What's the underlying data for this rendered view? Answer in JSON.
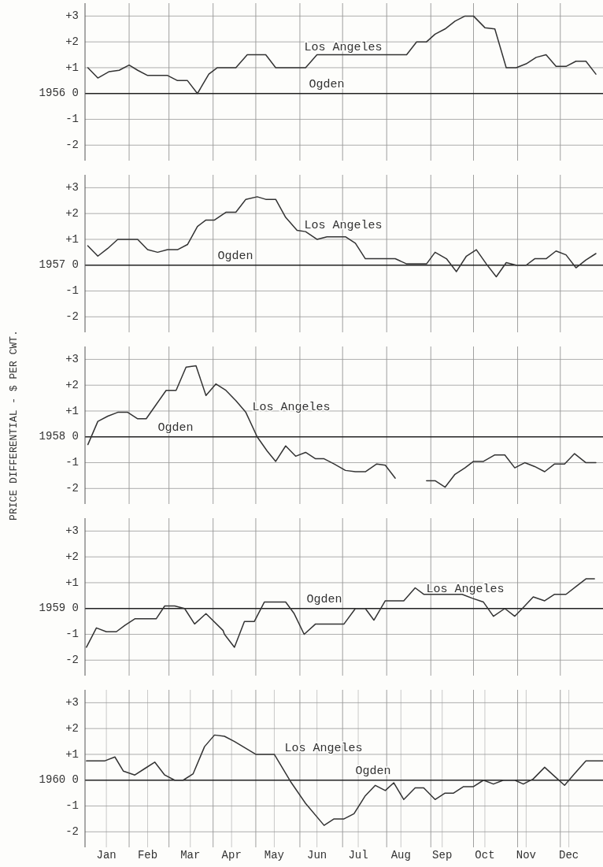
{
  "chart_data": [
    {
      "type": "line",
      "grid": true,
      "tick_labels": "y",
      "xlim": [
        "--01-01",
        "--12-31"
      ],
      "ylim": [
        -2.6,
        3.5
      ],
      "xticks": [
        {
          "value": "--02-01",
          "label": null
        },
        {
          "value": "--03-01",
          "label": null
        },
        {
          "value": "--04-01",
          "label": null
        },
        {
          "value": "--05-01",
          "label": null
        },
        {
          "value": "--06-01",
          "label": null
        },
        {
          "value": "--07-01",
          "label": null
        },
        {
          "value": "--08-01",
          "label": null
        },
        {
          "value": "--09-01",
          "label": null
        },
        {
          "value": "--10-01",
          "label": null
        },
        {
          "value": "--11-01",
          "label": null
        },
        {
          "value": "--12-01",
          "label": null
        }
      ],
      "yticks": [
        {
          "value": -2,
          "label": "-2"
        },
        {
          "value": -1,
          "label": "-1"
        },
        {
          "value": 0,
          "label": "1956 0"
        },
        {
          "value": 1,
          "label": "+1"
        },
        {
          "value": 2,
          "label": "+2"
        },
        {
          "value": 3,
          "label": "+3"
        }
      ],
      "annotations": [
        "Los Angeles",
        "Ogden"
      ],
      "series": [
        {
          "color": "#333333",
          "x": [
            "--01-03",
            "--01-10",
            "--01-18",
            "--01-25",
            "--02-01",
            "--02-07",
            "--02-14",
            "--02-21",
            "--02-28",
            "--03-07",
            "--03-14",
            "--03-21",
            "--03-29",
            "--04-04",
            "--04-17",
            "--04-25",
            "--05-08",
            "--05-15",
            "--06-05",
            "--06-13",
            "--08-15",
            "--08-22",
            "--08-29",
            "--09-04",
            "--09-11",
            "--09-18",
            "--09-25",
            "--10-01",
            "--10-09",
            "--10-16",
            "--10-24",
            "--10-31",
            "--11-07",
            "--11-14",
            "--11-21",
            "--11-28",
            "--12-05",
            "--12-12",
            "--12-19",
            "--12-26"
          ],
          "values": [
            1.0,
            0.6,
            0.85,
            0.9,
            1.1,
            0.9,
            0.7,
            0.7,
            0.7,
            0.5,
            0.5,
            0.0,
            0.75,
            1.0,
            1.0,
            1.5,
            1.5,
            1.0,
            1.0,
            1.5,
            1.5,
            2.0,
            2.0,
            2.3,
            2.5,
            2.8,
            3.0,
            3.0,
            2.55,
            2.5,
            1.0,
            1.0,
            1.15,
            1.4,
            1.5,
            1.05,
            1.05,
            1.25,
            1.25,
            0.75
          ]
        }
      ]
    },
    {
      "type": "line",
      "grid": true,
      "tick_labels": "y",
      "xlim": [
        "--01-01",
        "--12-31"
      ],
      "ylim": [
        -2.6,
        3.5
      ],
      "xticks": [
        {
          "value": "--02-01",
          "label": null
        },
        {
          "value": "--03-01",
          "label": null
        },
        {
          "value": "--04-01",
          "label": null
        },
        {
          "value": "--05-01",
          "label": null
        },
        {
          "value": "--06-01",
          "label": null
        },
        {
          "value": "--07-01",
          "label": null
        },
        {
          "value": "--08-01",
          "label": null
        },
        {
          "value": "--09-01",
          "label": null
        },
        {
          "value": "--10-01",
          "label": null
        },
        {
          "value": "--11-01",
          "label": null
        },
        {
          "value": "--12-01",
          "label": null
        }
      ],
      "yticks": [
        {
          "value": -2,
          "label": "-2"
        },
        {
          "value": -1,
          "label": "-1"
        },
        {
          "value": 0,
          "label": "1957 0"
        },
        {
          "value": 1,
          "label": "+1"
        },
        {
          "value": 2,
          "label": "+2"
        },
        {
          "value": 3,
          "label": "+3"
        }
      ],
      "annotations": [
        "Los Angeles",
        "Ogden"
      ],
      "series": [
        {
          "color": "#333333",
          "x": [
            "--01-03",
            "--01-10",
            "--01-17",
            "--01-24",
            "--02-07",
            "--02-14",
            "--02-21",
            "--02-28",
            "--03-07",
            "--03-14",
            "--03-21",
            "--03-27",
            "--04-02",
            "--04-10",
            "--04-17",
            "--04-24",
            "--05-02",
            "--05-08",
            "--05-15",
            "--05-22",
            "--05-30",
            "--06-05",
            "--06-13",
            "--06-20",
            "--07-03",
            "--07-10",
            "--07-17",
            "--08-07",
            "--08-15",
            "--08-29",
            "--09-04",
            "--09-12",
            "--09-19",
            "--09-26",
            "--10-03",
            "--10-10",
            "--10-17",
            "--10-24",
            "--10-31",
            "--11-07",
            "--11-13",
            "--11-21",
            "--11-28",
            "--12-05",
            "--12-12",
            "--12-19",
            "--12-26"
          ],
          "values": [
            0.75,
            0.35,
            0.65,
            1.0,
            1.0,
            0.6,
            0.5,
            0.6,
            0.6,
            0.8,
            1.5,
            1.75,
            1.75,
            2.05,
            2.05,
            2.55,
            2.65,
            2.55,
            2.55,
            1.85,
            1.35,
            1.3,
            1.0,
            1.1,
            1.1,
            0.85,
            0.25,
            0.25,
            0.05,
            0.05,
            0.5,
            0.25,
            -0.25,
            0.35,
            0.6,
            0.05,
            -0.45,
            0.1,
            0.0,
            0.0,
            0.25,
            0.25,
            0.55,
            0.4,
            -0.1,
            0.2,
            0.45
          ]
        }
      ]
    },
    {
      "type": "line",
      "grid": true,
      "tick_labels": "y",
      "xlim": [
        "--01-01",
        "--12-31"
      ],
      "ylim": [
        -2.6,
        3.5
      ],
      "ylabel": "PRICE DIFFERENTIAL - $ PER CWT.",
      "xticks": [
        {
          "value": "--02-01",
          "label": null
        },
        {
          "value": "--03-01",
          "label": null
        },
        {
          "value": "--04-01",
          "label": null
        },
        {
          "value": "--05-01",
          "label": null
        },
        {
          "value": "--06-01",
          "label": null
        },
        {
          "value": "--07-01",
          "label": null
        },
        {
          "value": "--08-01",
          "label": null
        },
        {
          "value": "--09-01",
          "label": null
        },
        {
          "value": "--10-01",
          "label": null
        },
        {
          "value": "--11-01",
          "label": null
        },
        {
          "value": "--12-01",
          "label": null
        }
      ],
      "yticks": [
        {
          "value": -2,
          "label": "-2"
        },
        {
          "value": -1,
          "label": "-1"
        },
        {
          "value": 0,
          "label": "1958 0"
        },
        {
          "value": 1,
          "label": "+1"
        },
        {
          "value": 2,
          "label": "+2"
        },
        {
          "value": 3,
          "label": "+3"
        }
      ],
      "annotations": [
        "Los Angeles",
        "Ogden"
      ],
      "series": [
        {
          "color": "#333333",
          "x": [
            "--01-03",
            "--01-10",
            "--01-17",
            "--01-24",
            "--01-31",
            "--02-07",
            "--02-13",
            "--02-20",
            "--02-27",
            "--03-06",
            "--03-13",
            "--03-20",
            "--03-27",
            "--04-03",
            "--04-10",
            "--04-17",
            "--04-24",
            "--05-02",
            "--05-09",
            "--05-15",
            "--05-22",
            "--05-29",
            "--06-05",
            "--06-12",
            "--06-18",
            "--06-25",
            "--07-03",
            "--07-10",
            "--07-17",
            "--07-25",
            "--07-31",
            "--08-07",
            "--08-18",
            "--08-29",
            "--09-04",
            "--09-11",
            "--09-18",
            "--09-25",
            "--10-01",
            "--10-08",
            "--10-16",
            "--10-23",
            "--10-30",
            "--11-06",
            "--11-13",
            "--11-20",
            "--11-27",
            "--12-04",
            "--12-11",
            "--12-19",
            "--12-26"
          ],
          "values": [
            -0.3,
            0.6,
            0.8,
            0.95,
            0.95,
            0.7,
            0.7,
            1.25,
            1.8,
            1.8,
            2.7,
            2.75,
            1.6,
            2.05,
            1.8,
            1.4,
            0.95,
            0.0,
            -0.55,
            -0.95,
            -0.35,
            -0.75,
            -0.6,
            -0.85,
            -0.85,
            -1.05,
            -1.3,
            -1.35,
            -1.35,
            -1.05,
            -1.1,
            -1.6,
            null,
            -1.7,
            -1.7,
            -1.95,
            -1.45,
            -1.2,
            -0.95,
            -0.95,
            -0.7,
            -0.7,
            -1.2,
            -1.0,
            -1.15,
            -1.35,
            -1.05,
            -1.05,
            -0.65,
            -1.0,
            -1.0
          ]
        }
      ]
    },
    {
      "type": "line",
      "grid": true,
      "tick_labels": "y",
      "xlim": [
        "--01-01",
        "--12-31"
      ],
      "ylim": [
        -2.6,
        3.5
      ],
      "xticks": [
        {
          "value": "--02-01",
          "label": null
        },
        {
          "value": "--03-01",
          "label": null
        },
        {
          "value": "--04-01",
          "label": null
        },
        {
          "value": "--05-01",
          "label": null
        },
        {
          "value": "--06-01",
          "label": null
        },
        {
          "value": "--07-01",
          "label": null
        },
        {
          "value": "--08-01",
          "label": null
        },
        {
          "value": "--09-01",
          "label": null
        },
        {
          "value": "--10-01",
          "label": null
        },
        {
          "value": "--11-01",
          "label": null
        },
        {
          "value": "--12-01",
          "label": null
        }
      ],
      "yticks": [
        {
          "value": -2,
          "label": "-2"
        },
        {
          "value": -1,
          "label": "-1"
        },
        {
          "value": 0,
          "label": "1959 0"
        },
        {
          "value": 1,
          "label": "+1"
        },
        {
          "value": 2,
          "label": "+2"
        },
        {
          "value": 3,
          "label": "+3"
        }
      ],
      "annotations": [
        "Los Angeles",
        "Ogden"
      ],
      "series": [
        {
          "color": "#333333",
          "x": [
            "--01-02",
            "--01-09",
            "--01-16",
            "--01-23",
            "--01-29",
            "--02-05",
            "--02-20",
            "--02-26",
            "--03-05",
            "--03-12",
            "--03-19",
            "--03-27",
            "--04-08",
            "--04-09",
            "--04-16",
            "--04-23",
            "--04-30",
            "--05-07",
            "--05-22",
            "--05-28",
            "--06-04",
            "--06-12",
            "--07-02",
            "--07-10",
            "--07-17",
            "--07-23",
            "--07-31",
            "--08-13",
            "--08-21",
            "--08-27",
            "--09-23",
            "--09-30",
            "--10-08",
            "--10-15",
            "--10-23",
            "--10-30",
            "--11-06",
            "--11-12",
            "--11-20",
            "--11-27",
            "--12-05",
            "--12-12",
            "--12-19",
            "--12-25"
          ],
          "values": [
            -1.5,
            -0.75,
            -0.9,
            -0.9,
            -0.65,
            -0.4,
            -0.4,
            0.1,
            0.1,
            0.0,
            -0.6,
            -0.2,
            -0.85,
            -1.0,
            -1.5,
            -0.5,
            -0.5,
            0.25,
            0.25,
            -0.2,
            -1.0,
            -0.6,
            -0.6,
            0.0,
            0.0,
            -0.45,
            0.3,
            0.3,
            0.8,
            0.55,
            0.55,
            0.4,
            0.25,
            -0.3,
            0.0,
            -0.3,
            0.1,
            0.45,
            0.3,
            0.55,
            0.55,
            0.85,
            1.15,
            1.15
          ]
        }
      ]
    },
    {
      "type": "line",
      "grid": true,
      "xlim": [
        "--01-01",
        "--12-31"
      ],
      "ylim": [
        -2.6,
        3.5
      ],
      "xticks": [
        {
          "value": "--01-16",
          "label": "Jan"
        },
        {
          "value": "--02-01",
          "label": null
        },
        {
          "value": "--02-14",
          "label": "Feb"
        },
        {
          "value": "--03-01",
          "label": null
        },
        {
          "value": "--03-16",
          "label": "Mar"
        },
        {
          "value": "--04-01",
          "label": null
        },
        {
          "value": "--04-14",
          "label": "Apr"
        },
        {
          "value": "--05-01",
          "label": null
        },
        {
          "value": "--05-14",
          "label": "May"
        },
        {
          "value": "--06-01",
          "label": null
        },
        {
          "value": "--06-13",
          "label": "Jun"
        },
        {
          "value": "--07-01",
          "label": null
        },
        {
          "value": "--07-12",
          "label": "Jul"
        },
        {
          "value": "--08-01",
          "label": null
        },
        {
          "value": "--08-11",
          "label": "Aug"
        },
        {
          "value": "--09-01",
          "label": null
        },
        {
          "value": "--09-09",
          "label": "Sep"
        },
        {
          "value": "--10-01",
          "label": null
        },
        {
          "value": "--10-09",
          "label": "Oct"
        },
        {
          "value": "--11-01",
          "label": null
        },
        {
          "value": "--11-07",
          "label": "Nov"
        },
        {
          "value": "--12-01",
          "label": null
        },
        {
          "value": "--12-07",
          "label": "Dec"
        }
      ],
      "yticks": [
        {
          "value": -2,
          "label": "-2"
        },
        {
          "value": -1,
          "label": "-1"
        },
        {
          "value": 0,
          "label": "1960 0"
        },
        {
          "value": 1,
          "label": "+1"
        },
        {
          "value": 2,
          "label": "+2"
        },
        {
          "value": 3,
          "label": "+3"
        }
      ],
      "annotations": [
        "Los Angeles",
        "Ogden"
      ],
      "series": [
        {
          "color": "#333333",
          "x": [
            "--01-02",
            "--01-15",
            "--01-22",
            "--01-28",
            "--02-05",
            "--02-12",
            "--02-19",
            "--02-26",
            "--03-05",
            "--03-11",
            "--03-18",
            "--03-26",
            "--04-02",
            "--04-09",
            "--04-16",
            "--05-01",
            "--05-14",
            "--05-26",
            "--06-05",
            "--06-18",
            "--06-25",
            "--07-02",
            "--07-09",
            "--07-17",
            "--07-24",
            "--07-31",
            "--08-06",
            "--08-13",
            "--08-21",
            "--08-27",
            "--09-04",
            "--09-11",
            "--09-17",
            "--09-24",
            "--10-01",
            "--10-08",
            "--10-15",
            "--10-22",
            "--10-30",
            "--11-05",
            "--11-12",
            "--11-20",
            "--11-27",
            "--12-04",
            "--12-11",
            "--12-19",
            "--12-31"
          ],
          "values": [
            0.75,
            0.75,
            0.9,
            0.35,
            0.2,
            0.45,
            0.7,
            0.2,
            0.0,
            0.0,
            0.25,
            1.3,
            1.75,
            1.7,
            1.5,
            1.0,
            1.0,
            -0.1,
            -0.9,
            -1.75,
            -1.5,
            -1.5,
            -1.3,
            -0.6,
            -0.2,
            -0.4,
            -0.1,
            -0.75,
            -0.3,
            -0.3,
            -0.75,
            -0.5,
            -0.5,
            -0.25,
            -0.25,
            0.0,
            -0.15,
            0.0,
            0.0,
            -0.15,
            0.05,
            0.5,
            0.15,
            -0.2,
            0.25,
            0.75,
            0.75
          ]
        }
      ]
    }
  ]
}
